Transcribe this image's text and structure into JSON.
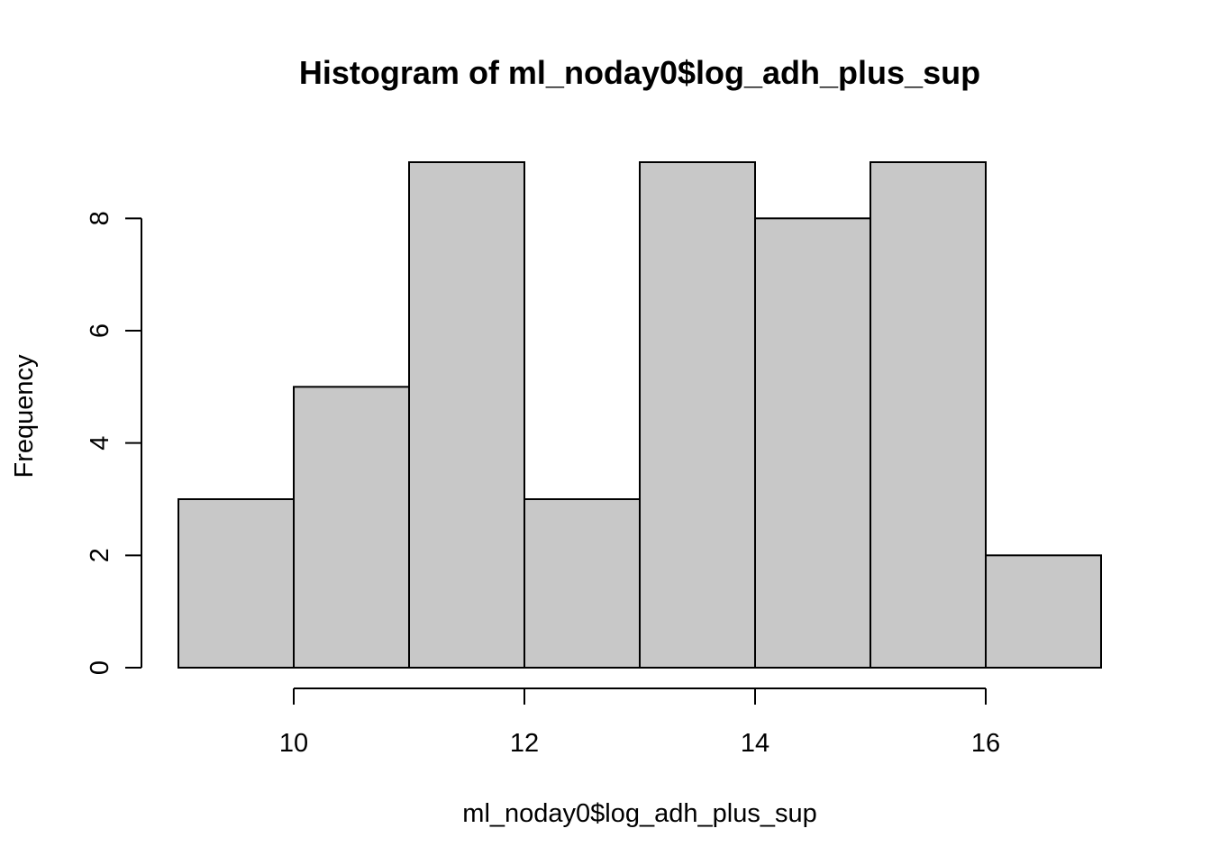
{
  "chart_data": {
    "type": "bar",
    "subtype": "histogram",
    "title": "Histogram of ml_noday0$log_adh_plus_sup",
    "xlabel": "ml_noday0$log_adh_plus_sup",
    "ylabel": "Frequency",
    "bin_edges": [
      9,
      10,
      11,
      12,
      13,
      14,
      15,
      16,
      17
    ],
    "values": [
      3,
      5,
      9,
      3,
      9,
      8,
      9,
      2
    ],
    "xlim": [
      9,
      17
    ],
    "ylim": [
      0,
      9
    ],
    "x_ticks": [
      10,
      12,
      14,
      16
    ],
    "y_ticks": [
      0,
      2,
      4,
      6,
      8
    ],
    "grid": false,
    "bar_color": "#c8c8c8",
    "border_color": "#000000"
  }
}
